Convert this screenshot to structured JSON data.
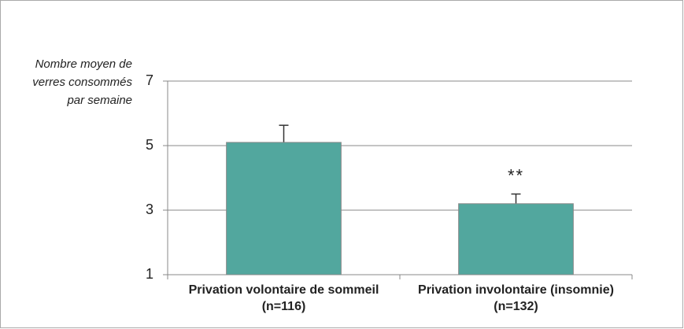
{
  "chart_data": {
    "type": "bar",
    "ylabel": "Nombre moyen de verres consommés par semaine",
    "categories": [
      "Privation volontaire de sommeil (n=116)",
      "Privation involontaire (insomnie) (n=132)"
    ],
    "values": [
      5.1,
      3.2
    ],
    "errors": [
      0.53,
      0.3
    ],
    "annotations": [
      {
        "text": "**",
        "category": 1
      }
    ],
    "color": "#52a79e",
    "ylim": [
      1,
      7
    ],
    "yticks": [
      1,
      3,
      5,
      7
    ],
    "grid": true
  }
}
